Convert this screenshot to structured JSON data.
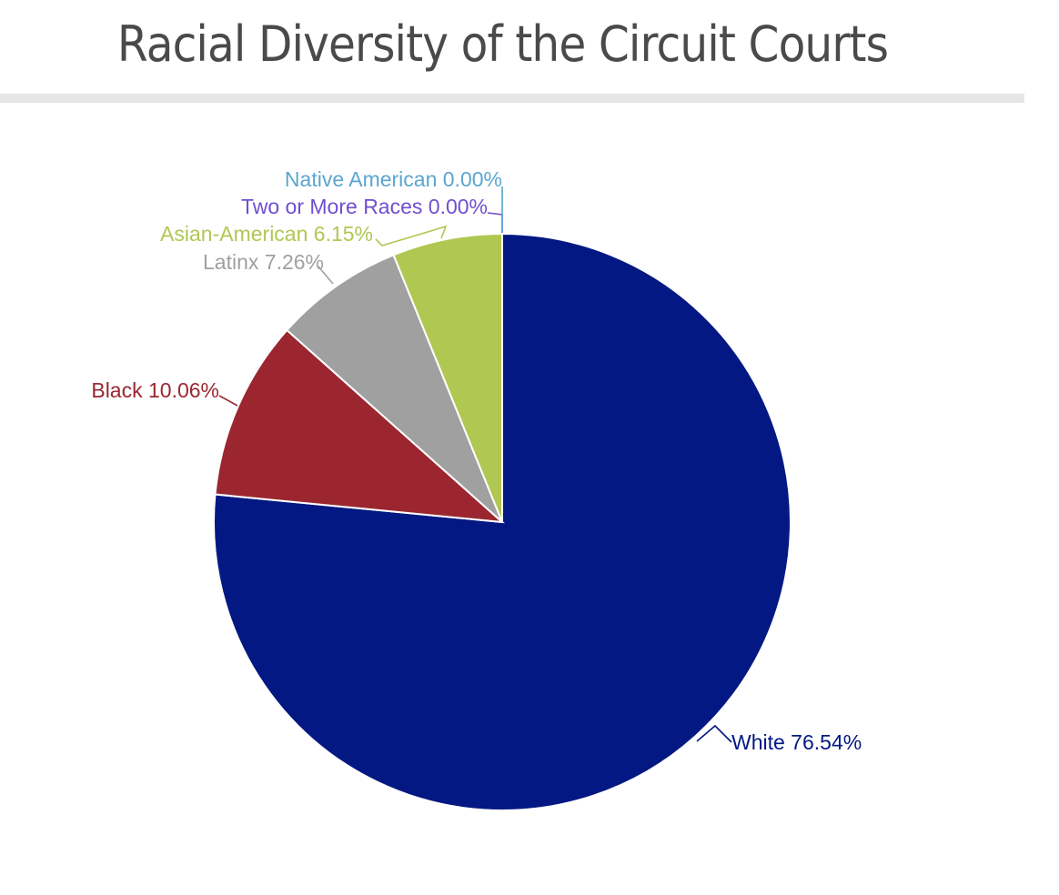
{
  "title": "Racial Diversity of the Circuit Courts",
  "chart_data": {
    "type": "pie",
    "start_angle_deg": 0,
    "direction": "clockwise",
    "slices": [
      {
        "name": "White",
        "value": 76.54,
        "label": "White 76.54%",
        "color": "#031882"
      },
      {
        "name": "Black",
        "value": 10.06,
        "label": "Black 10.06%",
        "color": "#9b2630"
      },
      {
        "name": "Latinx",
        "value": 7.26,
        "label": "Latinx 7.26%",
        "color": "#a0a0a0"
      },
      {
        "name": "Asian-American",
        "value": 6.15,
        "label": "Asian-American 6.15%",
        "color": "#b0c752"
      },
      {
        "name": "Two or More Races",
        "value": 0.0,
        "label": "Two or More Races 0.00%",
        "color": "#6f4fd0"
      },
      {
        "name": "Native American",
        "value": 0.0,
        "label": "Native American 0.00%",
        "color": "#5aa6cf"
      }
    ]
  }
}
